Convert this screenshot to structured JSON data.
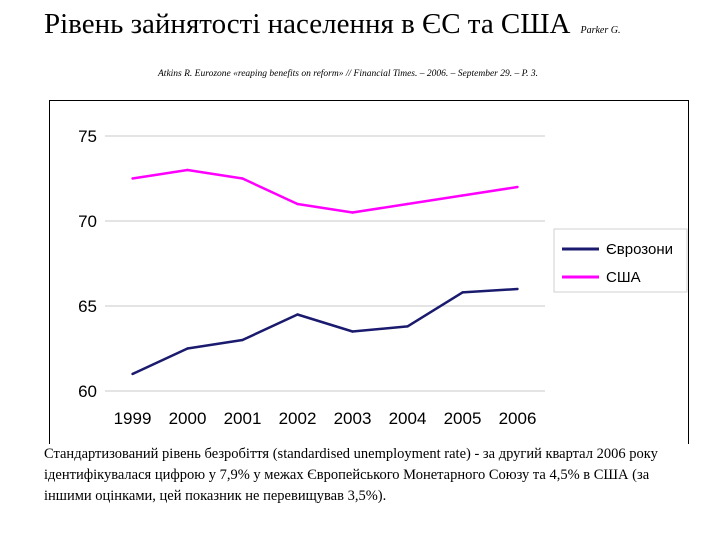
{
  "slide": {
    "title": "Рівень зайнятості населення в ЄС та США",
    "author": "Parker G.",
    "citation": "Atkins R. Eurozone «reaping benefits on reform» // Financial Times. – 2006. – September 29. – P. 3.",
    "caption": "Стандартизований рівень безробіття (standardised unemployment rate) - за другий квартал 2006 року ідентифікувалася цифрою у 7,9% у межах Європейського Монетарного Союзу та 4,5% в США (за іншими оцінками, цей показник не перевищував 3,5%)."
  },
  "chart_data": {
    "type": "line",
    "categories": [
      "1999",
      "2000",
      "2001",
      "2002",
      "2003",
      "2004",
      "2005",
      "2006"
    ],
    "series": [
      {
        "name": "Єврозони",
        "color": "#1a1a6e",
        "values": [
          61.0,
          62.5,
          63.0,
          64.5,
          63.5,
          63.8,
          65.8,
          66.0
        ]
      },
      {
        "name": "США",
        "color": "#ff00ff",
        "values": [
          72.5,
          73.0,
          72.5,
          71.0,
          70.5,
          71.0,
          71.5,
          72.0
        ]
      }
    ],
    "ylim": [
      60,
      75
    ],
    "yticks": [
      "60",
      "65",
      "70",
      "75"
    ],
    "grid": "horizontal",
    "legend_position": "right"
  }
}
